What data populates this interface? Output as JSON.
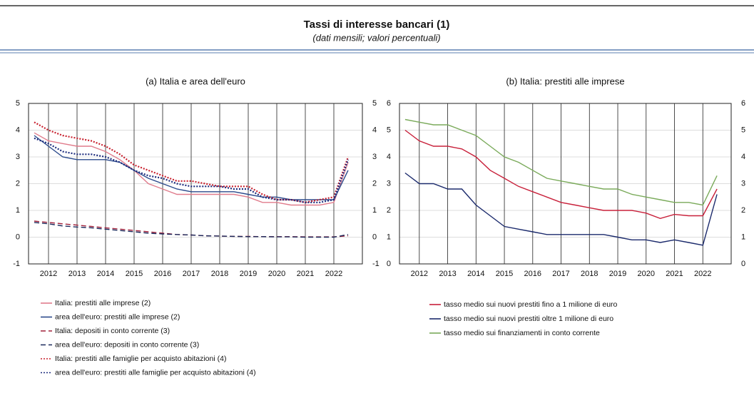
{
  "header": {
    "title": "Tassi di interesse bancari (1)",
    "subtitle": "(dati mensili; valori percentuali)"
  },
  "chart_data": [
    {
      "type": "line",
      "title": "(a) Italia e area dell'euro",
      "x": [
        2011.5,
        2012,
        2012.5,
        2013,
        2013.5,
        2014,
        2014.5,
        2015,
        2015.5,
        2016,
        2016.5,
        2017,
        2017.5,
        2018,
        2018.5,
        2019,
        2019.5,
        2020,
        2020.5,
        2021,
        2021.5,
        2022,
        2022.5
      ],
      "xlim": [
        2011.3,
        2023.0
      ],
      "xticks": [
        2012,
        2013,
        2014,
        2015,
        2016,
        2017,
        2018,
        2019,
        2020,
        2021,
        2022
      ],
      "ylim": [
        -1,
        5
      ],
      "yticks": [
        -1,
        0,
        1,
        2,
        3,
        4,
        5
      ],
      "y2lim": [
        -1,
        5
      ],
      "y2ticks": [
        -1,
        0,
        1,
        2,
        3,
        4,
        5
      ],
      "grid": true,
      "series": [
        {
          "name": "Italia: prestiti alle imprese (2)",
          "color": "#e07c8c",
          "style": "solid",
          "values": [
            3.9,
            3.6,
            3.5,
            3.4,
            3.4,
            3.2,
            2.9,
            2.5,
            2.0,
            1.8,
            1.6,
            1.6,
            1.6,
            1.6,
            1.6,
            1.5,
            1.3,
            1.3,
            1.2,
            1.2,
            1.2,
            1.3,
            2.8
          ]
        },
        {
          "name": "area dell'euro: prestiti alle imprese (2)",
          "color": "#2b4a8c",
          "style": "solid",
          "values": [
            3.8,
            3.4,
            3.0,
            2.9,
            2.9,
            2.9,
            2.8,
            2.5,
            2.2,
            2.0,
            1.8,
            1.7,
            1.7,
            1.7,
            1.7,
            1.6,
            1.5,
            1.5,
            1.4,
            1.4,
            1.4,
            1.4,
            2.5
          ]
        },
        {
          "name": "Italia: depositi in conto corrente (3)",
          "color": "#a0203a",
          "style": "dashed",
          "values": [
            0.6,
            0.55,
            0.5,
            0.45,
            0.4,
            0.35,
            0.3,
            0.25,
            0.2,
            0.15,
            0.1,
            0.08,
            0.05,
            0.04,
            0.03,
            0.03,
            0.02,
            0.02,
            0.02,
            0.01,
            0.01,
            0.01,
            0.05
          ]
        },
        {
          "name": "area dell'euro: depositi in conto corrente (3)",
          "color": "#1b2a5c",
          "style": "dashed",
          "values": [
            0.55,
            0.5,
            0.42,
            0.38,
            0.35,
            0.3,
            0.25,
            0.2,
            0.15,
            0.12,
            0.1,
            0.08,
            0.05,
            0.04,
            0.03,
            0.02,
            0.02,
            0.01,
            0.01,
            0,
            0,
            0,
            0.1
          ]
        },
        {
          "name": "Italia: prestiti alle famiglie per acquisto abitazioni (4)",
          "color": "#c8202e",
          "style": "dotted",
          "values": [
            4.3,
            4.0,
            3.8,
            3.7,
            3.6,
            3.4,
            3.1,
            2.7,
            2.5,
            2.3,
            2.1,
            2.1,
            2.0,
            1.9,
            1.9,
            1.9,
            1.6,
            1.4,
            1.4,
            1.3,
            1.4,
            1.5,
            3.0
          ]
        },
        {
          "name": "area dell'euro: prestiti alle famiglie per acquisto abitazioni (4)",
          "color": "#1b2a7c",
          "style": "dotted",
          "values": [
            3.7,
            3.5,
            3.2,
            3.1,
            3.1,
            3.0,
            2.8,
            2.5,
            2.3,
            2.2,
            2.0,
            1.9,
            1.9,
            1.9,
            1.8,
            1.8,
            1.5,
            1.4,
            1.4,
            1.3,
            1.3,
            1.4,
            2.9
          ]
        }
      ]
    },
    {
      "type": "line",
      "title": "(b) Italia: prestiti alle imprese",
      "x": [
        2011.5,
        2012,
        2012.5,
        2013,
        2013.5,
        2014,
        2014.5,
        2015,
        2015.5,
        2016,
        2016.5,
        2017,
        2017.5,
        2018,
        2018.5,
        2019,
        2019.5,
        2020,
        2020.5,
        2021,
        2021.5,
        2022,
        2022.5
      ],
      "xlim": [
        2011.3,
        2023.0
      ],
      "xticks": [
        2012,
        2013,
        2014,
        2015,
        2016,
        2017,
        2018,
        2019,
        2020,
        2021,
        2022
      ],
      "ylim": [
        0,
        6
      ],
      "yticks": [
        0,
        1,
        2,
        3,
        4,
        5,
        6
      ],
      "y2lim": [
        0,
        6
      ],
      "y2ticks": [
        0,
        1,
        2,
        3,
        4,
        5,
        6
      ],
      "grid": true,
      "series": [
        {
          "name": "tasso medio sui nuovi prestiti fino a 1 milione di euro",
          "color": "#c8203a",
          "style": "solid",
          "values": [
            5.0,
            4.6,
            4.4,
            4.4,
            4.3,
            4.0,
            3.5,
            3.2,
            2.9,
            2.7,
            2.5,
            2.3,
            2.2,
            2.1,
            2.0,
            2.0,
            2.0,
            1.9,
            1.7,
            1.85,
            1.8,
            1.8,
            2.8
          ]
        },
        {
          "name": "tasso medio sui nuovi prestiti oltre 1 milione di euro",
          "color": "#1b2a6c",
          "style": "solid",
          "values": [
            3.4,
            3.0,
            3.0,
            2.8,
            2.8,
            2.2,
            1.8,
            1.4,
            1.3,
            1.2,
            1.1,
            1.1,
            1.1,
            1.1,
            1.1,
            1.0,
            0.9,
            0.9,
            0.8,
            0.9,
            0.8,
            0.7,
            2.6
          ]
        },
        {
          "name": "tasso medio sui finanziamenti in conto corrente",
          "color": "#7aaa5a",
          "style": "solid",
          "values": [
            5.4,
            5.3,
            5.2,
            5.2,
            5.0,
            4.8,
            4.4,
            4.0,
            3.8,
            3.5,
            3.2,
            3.1,
            3.0,
            2.9,
            2.8,
            2.8,
            2.6,
            2.5,
            2.4,
            2.3,
            2.3,
            2.2,
            3.3
          ]
        }
      ]
    }
  ]
}
